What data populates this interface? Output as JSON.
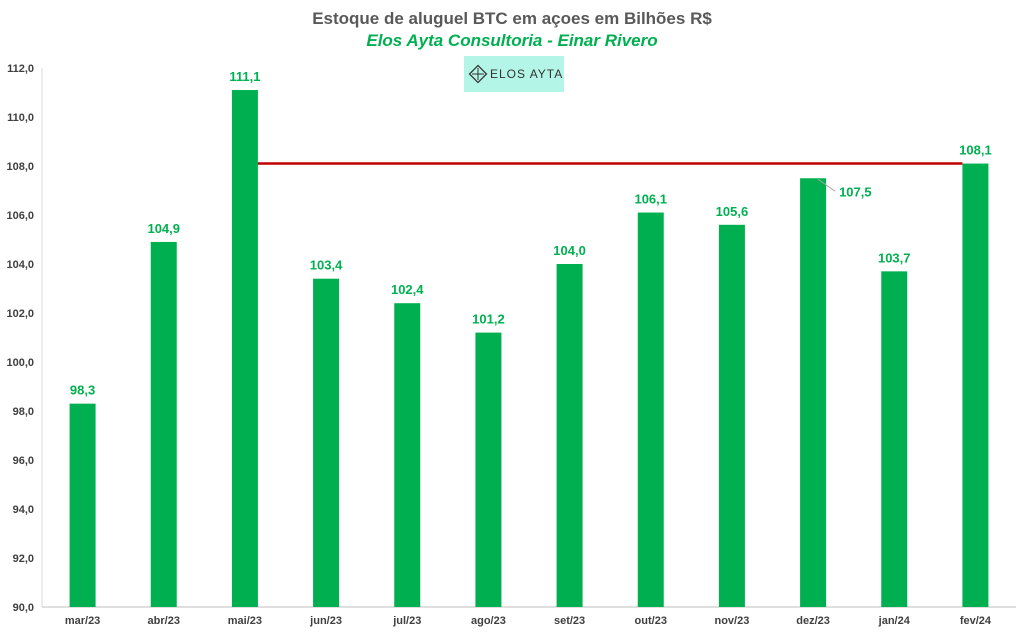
{
  "chart_data": {
    "type": "bar",
    "title": "Estoque de aluguel BTC em açoes em Bilhões R$",
    "subtitle": "Elos Ayta Consultoria - Einar Rivero",
    "categories": [
      "mar/23",
      "abr/23",
      "mai/23",
      "jun/23",
      "jul/23",
      "ago/23",
      "set/23",
      "out/23",
      "nov/23",
      "dez/23",
      "jan/24",
      "fev/24"
    ],
    "values": [
      98.3,
      104.9,
      111.1,
      103.4,
      102.4,
      101.2,
      104.0,
      106.1,
      105.6,
      107.5,
      103.7,
      108.1
    ],
    "value_labels": [
      "98,3",
      "104,9",
      "111,1",
      "103,4",
      "102,4",
      "101,2",
      "104,0",
      "106,1",
      "105,6",
      "107,5",
      "103,7",
      "108,1"
    ],
    "ylim": [
      90,
      112
    ],
    "yticks": [
      90,
      92,
      94,
      96,
      98,
      100,
      102,
      104,
      106,
      108,
      110,
      112
    ],
    "ytick_labels": [
      "90,0",
      "92,0",
      "94,0",
      "96,0",
      "98,0",
      "100,0",
      "102,0",
      "104,0",
      "106,0",
      "108,0",
      "110,0",
      "112,0"
    ],
    "reference_line": {
      "value": 108.1,
      "from_category": "mai/23",
      "to_category": "fev/24",
      "color": "#c00000"
    },
    "bar_color": "#00b050",
    "label_color": "#00b050",
    "xlabel": "",
    "ylabel": "",
    "grid": false
  },
  "logo": {
    "text": "ELOS AYTA",
    "background": "#b3f5e6"
  }
}
